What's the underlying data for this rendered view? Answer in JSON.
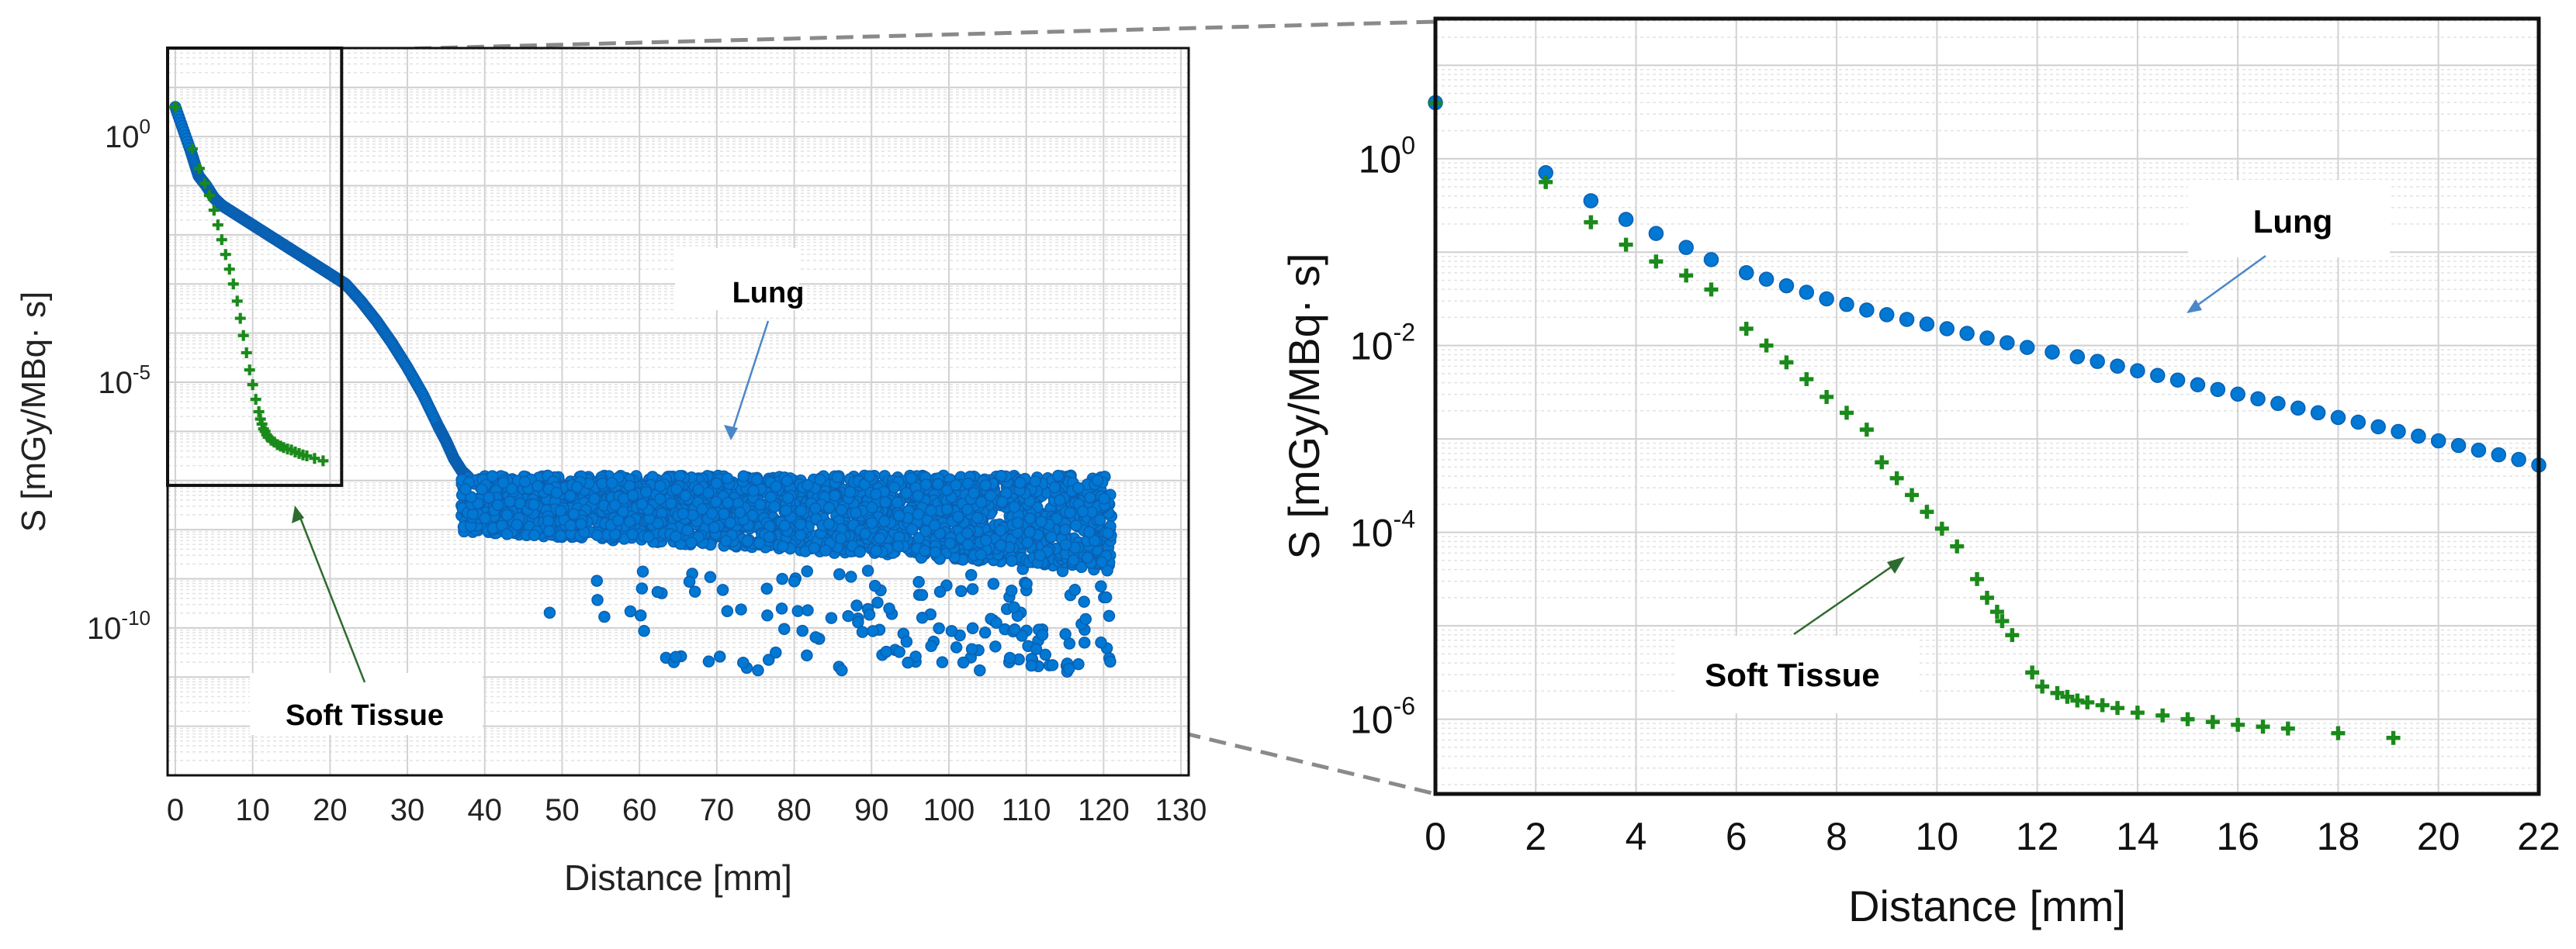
{
  "chart_data": [
    {
      "type": "scatter",
      "xlabel": "Distance [mm]",
      "ylabel": "S [mGy/MBq· s]",
      "x_ticks": [
        0,
        10,
        20,
        30,
        40,
        50,
        60,
        70,
        80,
        90,
        100,
        110,
        120,
        130
      ],
      "xlim": [
        -1,
        131
      ],
      "y_scale": "log",
      "ylim_log10": [
        -13,
        1.8
      ],
      "y_ticks": [
        {
          "exp": 0,
          "label_base": "10",
          "label_exp": "0"
        },
        {
          "exp": -5,
          "label_base": "10",
          "label_exp": "-5"
        },
        {
          "exp": -10,
          "label_base": "10",
          "label_exp": "-10"
        }
      ],
      "grid": true,
      "annotations": [
        "Lung",
        "Soft Tissue"
      ],
      "series": [
        {
          "name": "Lung",
          "marker": "circle",
          "color": "#0078d4",
          "curve_x": [
            0,
            2,
            3,
            4,
            5,
            6,
            8,
            10,
            12,
            14,
            16,
            18,
            20,
            22,
            24,
            26,
            28,
            30,
            32,
            34,
            35,
            36,
            37,
            38
          ],
          "curve_log10_y": [
            0.6,
            -0.3,
            -0.8,
            -1.0,
            -1.25,
            -1.4,
            -1.6,
            -1.8,
            -2.0,
            -2.2,
            -2.4,
            -2.6,
            -2.8,
            -3.0,
            -3.35,
            -3.75,
            -4.2,
            -4.7,
            -5.25,
            -5.9,
            -6.2,
            -6.55,
            -6.8,
            -6.95
          ],
          "cloud_x_range": [
            37,
            121
          ],
          "cloud_log10_y_band": [
            -6.9,
            -8.8
          ],
          "cloud_outlier_log10_y_min": -10.9
        },
        {
          "name": "Soft Tissue",
          "marker": "plus",
          "color": "#1a8a1a",
          "x": [
            0,
            2.2,
            3.1,
            3.8,
            4.4,
            5.0,
            5.5,
            6.0,
            6.5,
            7.0,
            7.5,
            8.0,
            8.4,
            8.8,
            9.2,
            9.6,
            10.0,
            10.4,
            10.8,
            11.0,
            11.2,
            11.4,
            11.6,
            11.8,
            12.0,
            12.4,
            12.8,
            13.2,
            13.6,
            14.0,
            14.5,
            15.0,
            15.5,
            16.0,
            16.5,
            17.0,
            18.0,
            19.1
          ],
          "log10_y": [
            0.6,
            -0.25,
            -0.65,
            -0.95,
            -1.2,
            -1.5,
            -1.8,
            -2.1,
            -2.4,
            -2.7,
            -3.0,
            -3.35,
            -3.7,
            -4.05,
            -4.4,
            -4.75,
            -5.05,
            -5.35,
            -5.6,
            -5.75,
            -5.85,
            -5.95,
            -6.0,
            -6.07,
            -6.12,
            -6.18,
            -6.22,
            -6.27,
            -6.3,
            -6.33,
            -6.36,
            -6.38,
            -6.42,
            -6.45,
            -6.48,
            -6.5,
            -6.55,
            -6.6
          ]
        }
      ]
    },
    {
      "type": "scatter",
      "xlabel": "Distance [mm]",
      "ylabel": "S [mGy/MBq· s]",
      "x_ticks": [
        0,
        2,
        4,
        6,
        8,
        10,
        12,
        14,
        16,
        18,
        20,
        22
      ],
      "xlim": [
        0,
        22
      ],
      "y_scale": "log",
      "ylim_log10": [
        -6.8,
        1.5
      ],
      "y_ticks": [
        {
          "exp": 0,
          "label_base": "10",
          "label_exp": "0"
        },
        {
          "exp": -2,
          "label_base": "10",
          "label_exp": "-2"
        },
        {
          "exp": -4,
          "label_base": "10",
          "label_exp": "-4"
        },
        {
          "exp": -6,
          "label_base": "10",
          "label_exp": "-6"
        }
      ],
      "grid": true,
      "annotations": [
        "Lung",
        "Soft Tissue"
      ],
      "series": [
        {
          "name": "Lung",
          "marker": "circle",
          "color": "#0078d4",
          "x": [
            0,
            2.2,
            3.1,
            3.8,
            4.4,
            5.0,
            5.5,
            6.2,
            6.6,
            7.0,
            7.4,
            7.8,
            8.2,
            8.6,
            9.0,
            9.4,
            9.8,
            10.2,
            10.6,
            11.0,
            11.4,
            11.8,
            12.3,
            12.8,
            13.2,
            13.6,
            14.0,
            14.4,
            14.8,
            15.2,
            15.6,
            16.0,
            16.4,
            16.8,
            17.2,
            17.6,
            18.0,
            18.4,
            18.8,
            19.2,
            19.6,
            20.0,
            20.4,
            20.8,
            21.2,
            21.6,
            22.0
          ],
          "log10_y": [
            0.6,
            -0.15,
            -0.45,
            -0.65,
            -0.8,
            -0.95,
            -1.08,
            -1.22,
            -1.29,
            -1.36,
            -1.43,
            -1.5,
            -1.56,
            -1.62,
            -1.67,
            -1.72,
            -1.77,
            -1.82,
            -1.87,
            -1.92,
            -1.97,
            -2.02,
            -2.07,
            -2.12,
            -2.17,
            -2.22,
            -2.27,
            -2.32,
            -2.37,
            -2.42,
            -2.47,
            -2.52,
            -2.57,
            -2.62,
            -2.67,
            -2.72,
            -2.77,
            -2.82,
            -2.87,
            -2.92,
            -2.97,
            -3.02,
            -3.07,
            -3.12,
            -3.17,
            -3.22,
            -3.28
          ]
        },
        {
          "name": "Soft Tissue",
          "marker": "plus",
          "color": "#1a8a1a",
          "x": [
            0,
            2.2,
            3.1,
            3.8,
            4.4,
            5.0,
            5.5,
            6.2,
            6.6,
            7.0,
            7.4,
            7.8,
            8.2,
            8.6,
            8.9,
            9.2,
            9.5,
            9.8,
            10.1,
            10.4,
            10.8,
            11.0,
            11.2,
            11.3,
            11.5,
            11.9,
            12.1,
            12.4,
            12.6,
            12.8,
            13.0,
            13.3,
            13.6,
            14.0,
            14.5,
            15.0,
            15.5,
            16.0,
            16.5,
            17.0,
            18.0,
            19.1
          ],
          "log10_y": [
            0.6,
            -0.25,
            -0.68,
            -0.92,
            -1.1,
            -1.25,
            -1.4,
            -1.82,
            -2.0,
            -2.18,
            -2.36,
            -2.55,
            -2.72,
            -2.9,
            -3.25,
            -3.42,
            -3.6,
            -3.78,
            -3.96,
            -4.15,
            -4.5,
            -4.7,
            -4.85,
            -4.95,
            -5.1,
            -5.5,
            -5.65,
            -5.72,
            -5.76,
            -5.8,
            -5.82,
            -5.85,
            -5.88,
            -5.93,
            -5.96,
            -6.0,
            -6.03,
            -6.06,
            -6.08,
            -6.1,
            -6.15,
            -6.2
          ]
        }
      ]
    }
  ]
}
